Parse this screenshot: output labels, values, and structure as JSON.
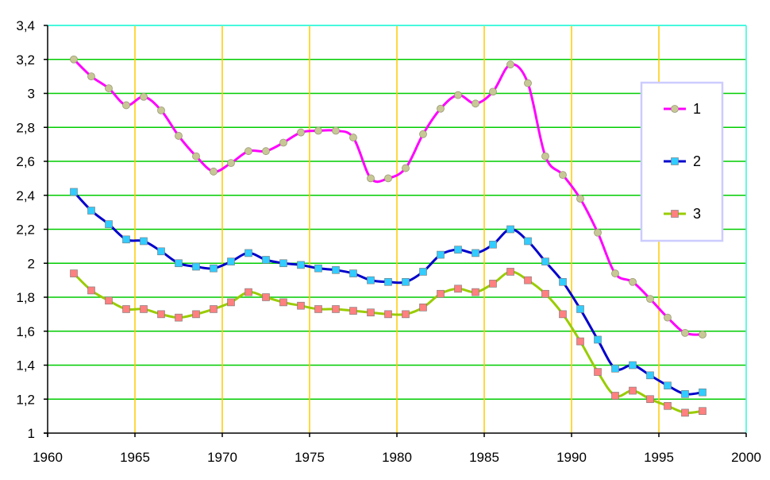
{
  "chart_data": {
    "type": "line",
    "title": "",
    "xlabel": "",
    "ylabel": "",
    "xlim": [
      1960,
      2000
    ],
    "ylim": [
      1,
      3.4
    ],
    "xticks": [
      1960,
      1965,
      1970,
      1975,
      1980,
      1985,
      1990,
      1995,
      2000
    ],
    "xtick_labels": [
      "1960",
      "1965",
      "1970",
      "1975",
      "1980",
      "1985",
      "1990",
      "1995",
      "2000"
    ],
    "yticks": [
      1,
      1.2,
      1.4,
      1.6,
      1.8,
      2,
      2.2,
      2.4,
      2.6,
      2.8,
      3,
      3.2,
      3.4
    ],
    "ytick_labels": [
      "1",
      "1,2",
      "1,4",
      "1,6",
      "1,8",
      "2",
      "2,2",
      "2,4",
      "2,6",
      "2,8",
      "3",
      "3,2",
      "3,4"
    ],
    "grid": true,
    "legend_position": "right",
    "x": [
      1961.5,
      1962.5,
      1963.5,
      1964.5,
      1965.5,
      1966.5,
      1967.5,
      1968.5,
      1969.5,
      1970.5,
      1971.5,
      1972.5,
      1973.5,
      1974.5,
      1975.5,
      1976.5,
      1977.5,
      1978.5,
      1979.5,
      1980.5,
      1981.5,
      1982.5,
      1983.5,
      1984.5,
      1985.5,
      1986.5,
      1987.5,
      1988.5,
      1989.5,
      1990.5,
      1991.5,
      1992.5,
      1993.5,
      1994.5,
      1995.5,
      1996.5,
      1997.5
    ],
    "series": [
      {
        "name": "1",
        "color": "#ff00ff",
        "marker": "circle",
        "marker_color": "#c8c896",
        "values": [
          3.2,
          3.1,
          3.03,
          2.93,
          2.98,
          2.9,
          2.75,
          2.63,
          2.54,
          2.59,
          2.66,
          2.66,
          2.71,
          2.77,
          2.78,
          2.78,
          2.74,
          2.5,
          2.5,
          2.56,
          2.76,
          2.91,
          2.99,
          2.94,
          3.01,
          3.17,
          3.06,
          2.63,
          2.52,
          2.38,
          2.18,
          1.94,
          1.89,
          1.79,
          1.68,
          1.59,
          1.58
        ]
      },
      {
        "name": "2",
        "color": "#0000cc",
        "marker": "square",
        "marker_color": "#33ccff",
        "values": [
          2.42,
          2.31,
          2.23,
          2.14,
          2.13,
          2.07,
          2.0,
          1.98,
          1.97,
          2.01,
          2.06,
          2.02,
          2.0,
          1.99,
          1.97,
          1.96,
          1.94,
          1.9,
          1.89,
          1.89,
          1.95,
          2.05,
          2.08,
          2.06,
          2.11,
          2.2,
          2.13,
          2.01,
          1.89,
          1.73,
          1.55,
          1.38,
          1.4,
          1.34,
          1.28,
          1.23,
          1.24
        ]
      },
      {
        "name": "3",
        "color": "#99cc00",
        "marker": "square",
        "marker_color": "#ff8080",
        "values": [
          1.94,
          1.84,
          1.78,
          1.73,
          1.73,
          1.7,
          1.68,
          1.7,
          1.73,
          1.77,
          1.83,
          1.8,
          1.77,
          1.75,
          1.73,
          1.73,
          1.72,
          1.71,
          1.7,
          1.7,
          1.74,
          1.82,
          1.85,
          1.83,
          1.88,
          1.95,
          1.9,
          1.82,
          1.7,
          1.54,
          1.36,
          1.22,
          1.25,
          1.2,
          1.16,
          1.12,
          1.13
        ]
      }
    ]
  },
  "colors": {
    "vertical_grid": "#ffcc00",
    "horizontal_grid": "#00cc00",
    "plot_border_right_top": "#33ffff",
    "legend_border": "#ccccff"
  }
}
